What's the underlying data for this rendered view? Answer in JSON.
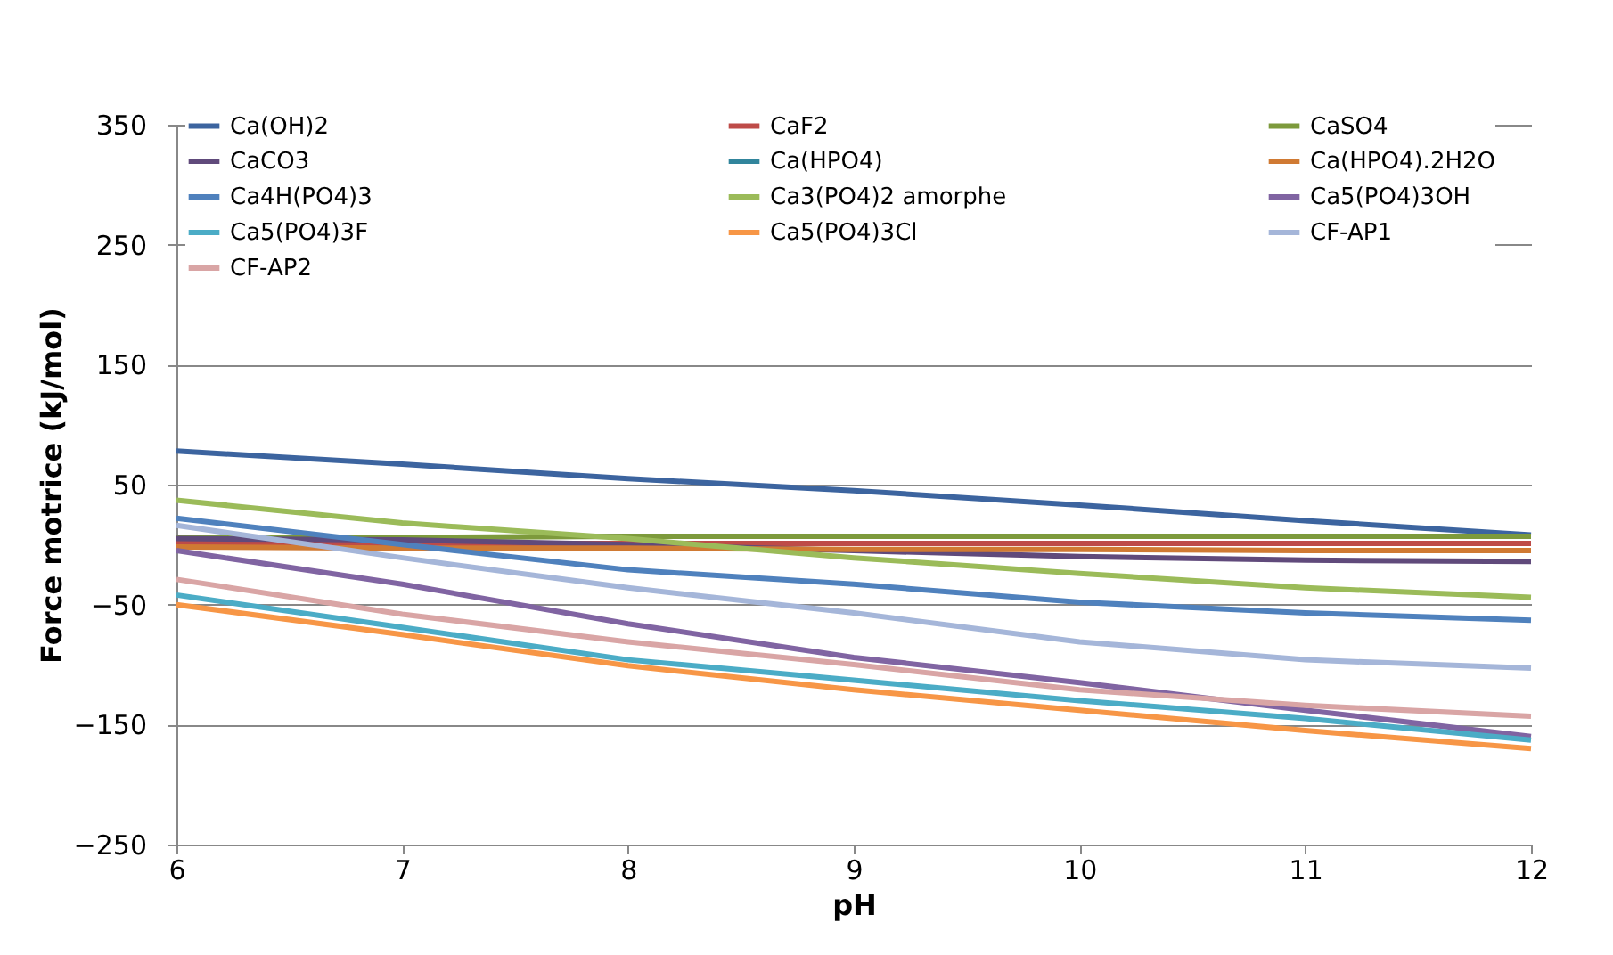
{
  "chart_data": {
    "type": "line",
    "xlabel": "pH",
    "ylabel": "Force motrice (kJ/mol)",
    "x": [
      6,
      7,
      8,
      9,
      10,
      11,
      12
    ],
    "series": [
      {
        "name": "Ca(OH)2",
        "color": "#3c649f",
        "values": [
          78,
          67,
          55,
          45,
          33,
          20,
          8
        ]
      },
      {
        "name": "CaF2",
        "color": "#be4b48",
        "values": [
          1,
          1,
          1,
          1,
          1,
          1,
          1
        ]
      },
      {
        "name": "CaSO4",
        "color": "#7d9a3c",
        "values": [
          6,
          6,
          7,
          7,
          7,
          7,
          7
        ]
      },
      {
        "name": "CaCO3",
        "color": "#604a7b",
        "values": [
          5,
          4,
          0,
          -5,
          -10,
          -13,
          -14
        ]
      },
      {
        "name": "Ca(HPO4)",
        "color": "#31859c",
        "values": [
          null,
          null,
          null,
          null,
          null,
          null,
          null
        ]
      },
      {
        "name": "Ca(HPO4).2H2O",
        "color": "#d07a33",
        "values": [
          -2,
          -3,
          -3,
          -4,
          -4,
          -5,
          -5
        ]
      },
      {
        "name": "Ca4H(PO4)3",
        "color": "#4f81bd",
        "values": [
          22,
          0,
          -21,
          -33,
          -48,
          -57,
          -63
        ]
      },
      {
        "name": "Ca3(PO4)2 amorphe",
        "color": "#9bbb59",
        "values": [
          37,
          18,
          5,
          -11,
          -24,
          -36,
          -44
        ]
      },
      {
        "name": "Ca5(PO4)3OH",
        "color": "#8064a2",
        "values": [
          -5,
          -33,
          -66,
          -94,
          -115,
          -138,
          -160
        ]
      },
      {
        "name": "Ca5(PO4)3F",
        "color": "#4bacc6",
        "values": [
          -42,
          -69,
          -96,
          -113,
          -130,
          -145,
          -163
        ]
      },
      {
        "name": "Ca5(PO4)3Cl",
        "color": "#f79646",
        "values": [
          -50,
          -75,
          -101,
          -121,
          -138,
          -155,
          -170
        ]
      },
      {
        "name": "CF-AP1",
        "color": "#a5b6d9",
        "values": [
          16,
          -11,
          -36,
          -57,
          -81,
          -96,
          -103
        ]
      },
      {
        "name": "CF-AP2",
        "color": "#d9a5a5",
        "values": [
          -29,
          -58,
          -81,
          -100,
          -121,
          -134,
          -143
        ]
      }
    ],
    "xlim": [
      6,
      12
    ],
    "xticks": [
      6,
      7,
      8,
      9,
      10,
      11,
      12
    ],
    "ylim": [
      -250,
      350
    ],
    "yticks": [
      -250,
      -150,
      -50,
      50,
      150,
      250,
      350
    ],
    "grid": "y",
    "legend": "top",
    "marker": "none",
    "line_style": "solid"
  }
}
